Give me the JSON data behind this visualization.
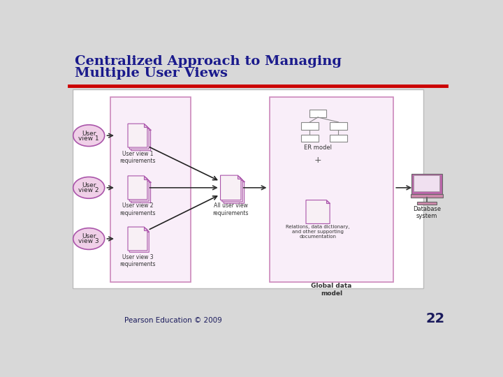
{
  "title_line1": "Centralized Approach to Managing",
  "title_line2": "Multiple User Views",
  "title_color": "#1a1a8c",
  "title_fontsize": 14,
  "slide_bg": "#d8d8d8",
  "red_line_color": "#cc0000",
  "footer_text": "Pearson Education © 2009",
  "footer_color": "#1a1a5c",
  "page_number": "22",
  "page_color": "#1a1a5c",
  "box_border_color": "#cc88bb",
  "ellipse_fill": "#f0d0e8",
  "ellipse_edge": "#aa55aa",
  "doc_fill": "#f8f0f5",
  "doc_edge": "#aa55aa",
  "arrow_color": "#333333",
  "er_box_fill": "#ffffff",
  "er_box_edge": "#888888",
  "diag_bg": "#ffffff",
  "diag_edge": "#bbbbbb"
}
